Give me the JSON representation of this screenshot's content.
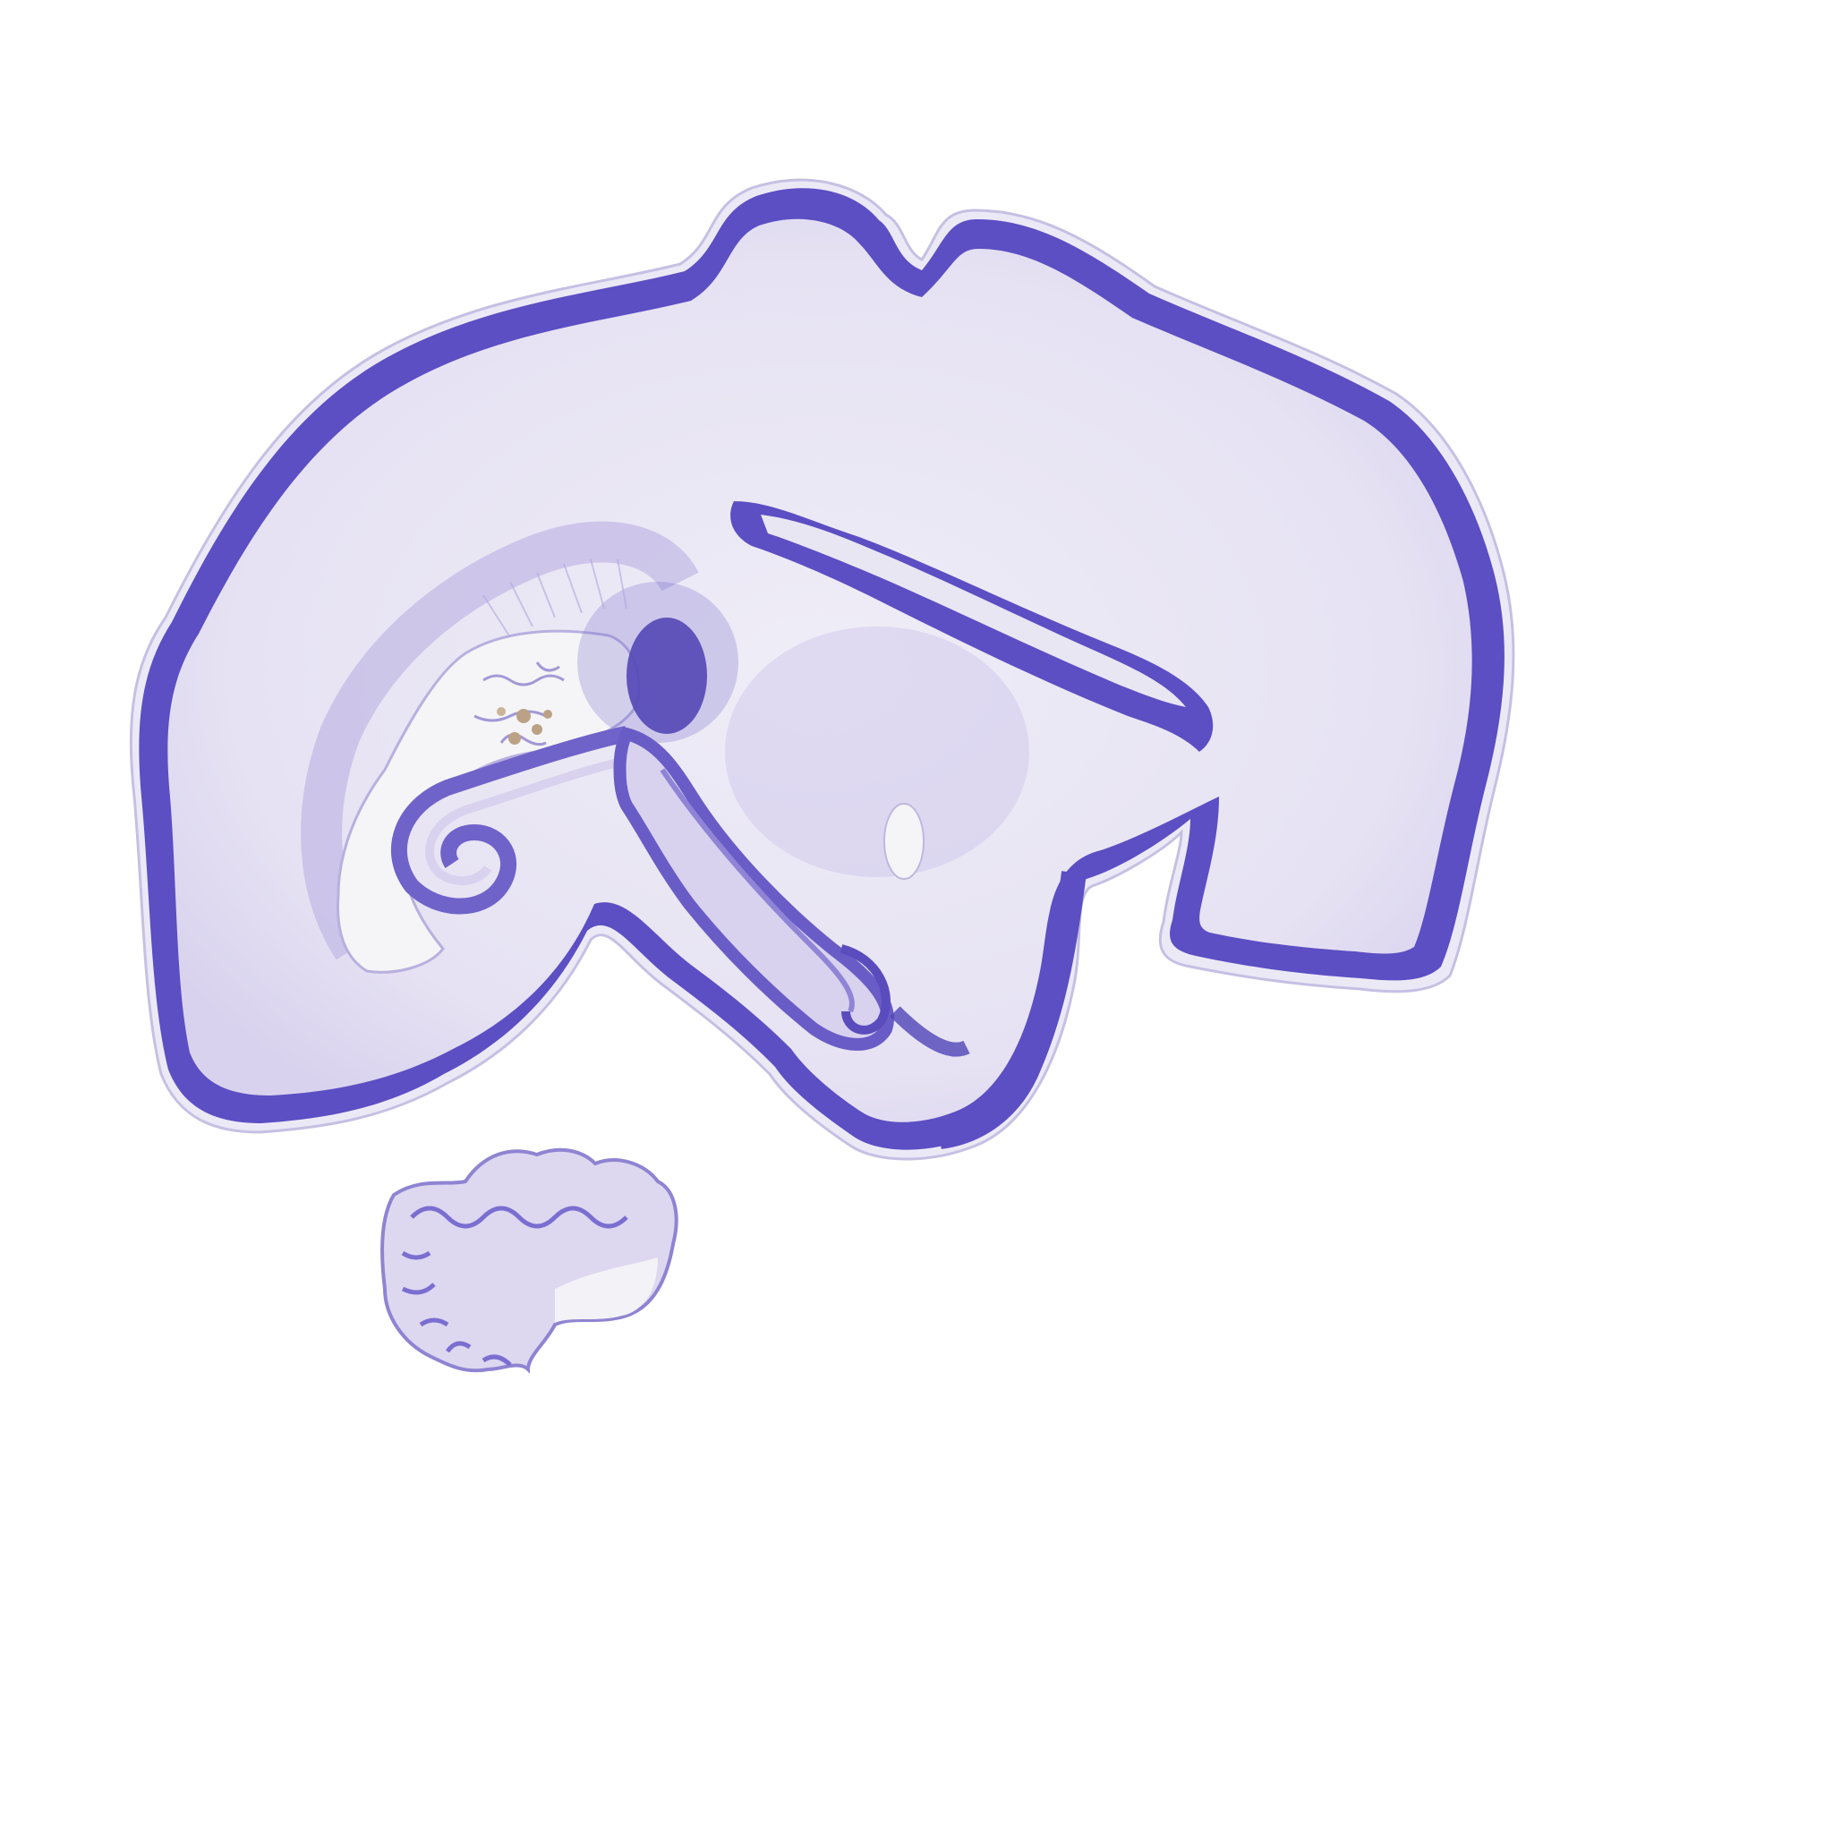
{
  "image": {
    "subject": "nissl-stained-brain-section",
    "background_color": "#ffffff",
    "colors": {
      "cortex_dark": "#5a4cc0",
      "cortex_mid": "#7a6ed0",
      "white_matter": "#e9e6f4",
      "tissue_light": "#d9d4ee",
      "tissue_faint": "#efedf7",
      "ventricle": "#f6f6f8",
      "hippocampus_dark": "#4b3fb0",
      "choroid_brown": "#b59a7a",
      "outline": "#b9b3dd"
    }
  }
}
